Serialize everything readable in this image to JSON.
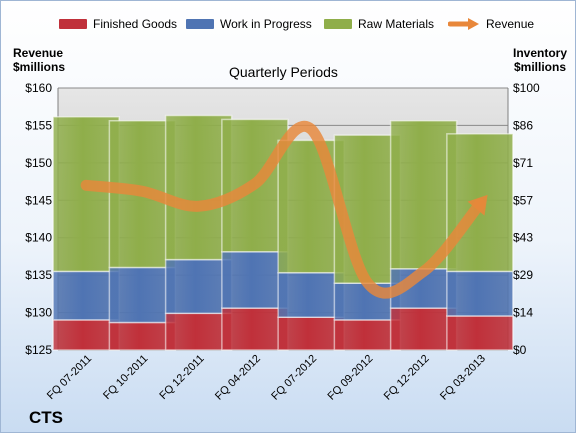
{
  "chart_data": {
    "type": "bar",
    "title": "Quarterly Periods",
    "company": "CTS",
    "left_axis_title": [
      "Revenue",
      "$millions"
    ],
    "right_axis_title": [
      "Inventory",
      "$millions"
    ],
    "categories": [
      "FQ 07-2011",
      "FQ 10-2011",
      "FQ 12-2011",
      "FQ 04-2012",
      "FQ 07-2012",
      "FQ 09-2012",
      "FQ 12-2012",
      "FQ 03-2013"
    ],
    "stacked": true,
    "series": [
      {
        "name": "Finished Goods",
        "axis": "right",
        "color": "#c0303a",
        "values": [
          11.5,
          10.5,
          14,
          16,
          12.5,
          11.5,
          16,
          13
        ]
      },
      {
        "name": "Work in Progress",
        "axis": "right",
        "color": "#4f74b3",
        "values": [
          18.5,
          21,
          20.5,
          21.5,
          17,
          14,
          15,
          17
        ]
      },
      {
        "name": "Raw Materials",
        "axis": "right",
        "color": "#8fae4a",
        "values": [
          59,
          56,
          55,
          50.5,
          50.5,
          56.5,
          56.5,
          52.5
        ]
      },
      {
        "name": "Revenue",
        "axis": "left",
        "type": "line",
        "color": "#e8873a",
        "values": [
          147,
          146.2,
          144.2,
          147.2,
          154.5,
          134,
          135.5,
          144.5
        ]
      }
    ],
    "left_axis": {
      "min": 125,
      "max": 160,
      "step": 5,
      "prefix": "$"
    },
    "right_axis": {
      "min": 0,
      "max": 100,
      "step": 10,
      "prefix": "$"
    },
    "legend_position": "top",
    "grid": true
  }
}
